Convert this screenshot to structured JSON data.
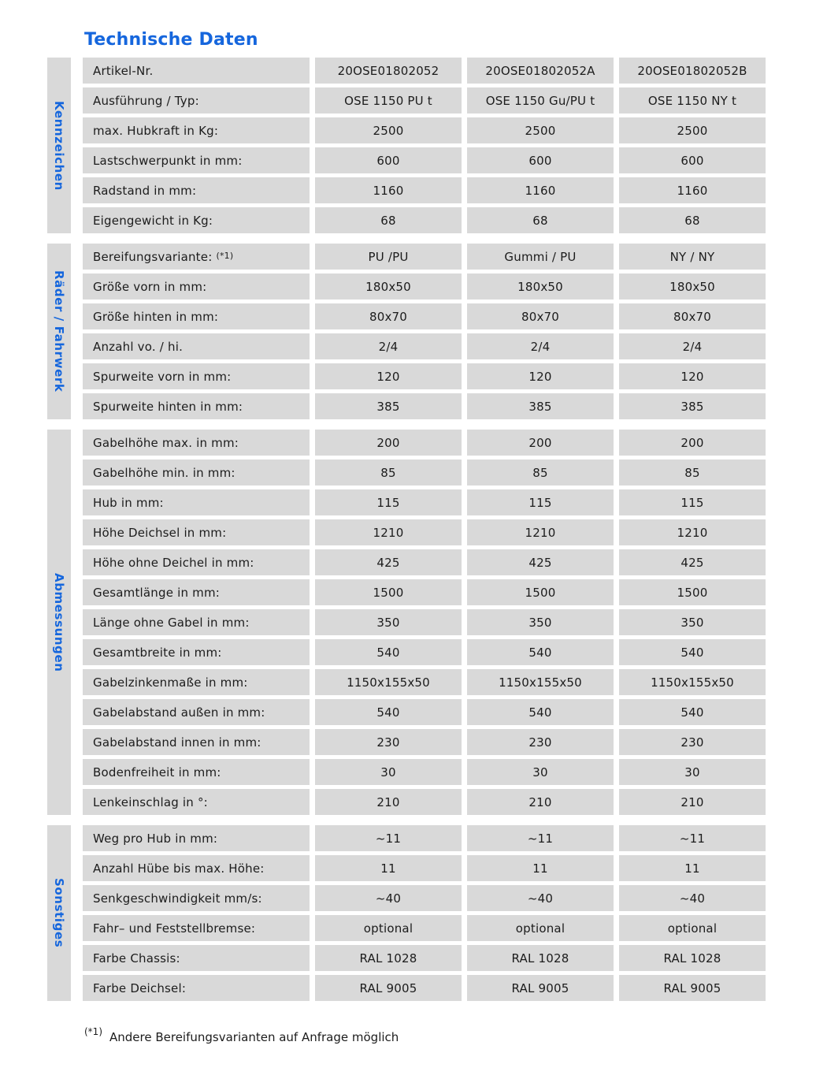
{
  "page": {
    "title": "Technische Daten",
    "footnote": {
      "marker": "(*1)",
      "text": "Andere Bereifungsvarianten auf Anfrage möglich"
    },
    "colors": {
      "accent_blue": "#1566dd",
      "cell_gray": "#d9d9d9",
      "text": "#1c1c1c"
    }
  },
  "table": {
    "sections": [
      {
        "name": "Kennzeichen",
        "rows": [
          {
            "label": "Artikel-Nr.",
            "values": [
              "20OSE01802052",
              "20OSE01802052A",
              "20OSE01802052B"
            ]
          },
          {
            "label": "Ausführung / Typ:",
            "values": [
              "OSE 1150 PU t",
              "OSE 1150 Gu/PU t",
              "OSE 1150 NY t"
            ]
          },
          {
            "label": "max. Hubkraft in Kg:",
            "values": [
              "2500",
              "2500",
              "2500"
            ]
          },
          {
            "label": "Lastschwerpunkt in mm:",
            "values": [
              "600",
              "600",
              "600"
            ]
          },
          {
            "label": "Radstand in mm:",
            "values": [
              "1160",
              "1160",
              "1160"
            ]
          },
          {
            "label": "Eigengewicht in Kg:",
            "values": [
              "68",
              "68",
              "68"
            ]
          }
        ]
      },
      {
        "name": "Räder / Fahrwerk",
        "rows": [
          {
            "label": "Bereifungsvariante:",
            "label_sup": "(*1)",
            "values": [
              "PU /PU",
              "Gummi / PU",
              "NY / NY"
            ]
          },
          {
            "label": "Größe vorn in mm:",
            "values": [
              "180x50",
              "180x50",
              "180x50"
            ]
          },
          {
            "label": "Größe hinten in mm:",
            "values": [
              "80x70",
              "80x70",
              "80x70"
            ]
          },
          {
            "label": "Anzahl vo. / hi.",
            "values": [
              "2/4",
              "2/4",
              "2/4"
            ]
          },
          {
            "label": "Spurweite vorn in mm:",
            "values": [
              "120",
              "120",
              "120"
            ]
          },
          {
            "label": "Spurweite hinten in mm:",
            "values": [
              "385",
              "385",
              "385"
            ]
          }
        ]
      },
      {
        "name": "Abmessungen",
        "rows": [
          {
            "label": "Gabelhöhe max. in mm:",
            "values": [
              "200",
              "200",
              "200"
            ]
          },
          {
            "label": "Gabelhöhe min. in mm:",
            "values": [
              "85",
              "85",
              "85"
            ]
          },
          {
            "label": "Hub in mm:",
            "values": [
              "115",
              "115",
              "115"
            ]
          },
          {
            "label": "Höhe Deichsel in mm:",
            "values": [
              "1210",
              "1210",
              "1210"
            ]
          },
          {
            "label": "Höhe ohne Deichel in mm:",
            "values": [
              "425",
              "425",
              "425"
            ]
          },
          {
            "label": "Gesamtlänge in mm:",
            "values": [
              "1500",
              "1500",
              "1500"
            ]
          },
          {
            "label": "Länge ohne Gabel in mm:",
            "values": [
              "350",
              "350",
              "350"
            ]
          },
          {
            "label": "Gesamtbreite in mm:",
            "values": [
              "540",
              "540",
              "540"
            ]
          },
          {
            "label": "Gabelzinkenmaße in mm:",
            "values": [
              "1150x155x50",
              "1150x155x50",
              "1150x155x50"
            ]
          },
          {
            "label": "Gabelabstand außen in mm:",
            "values": [
              "540",
              "540",
              "540"
            ]
          },
          {
            "label": "Gabelabstand innen in mm:",
            "values": [
              "230",
              "230",
              "230"
            ]
          },
          {
            "label": "Bodenfreiheit in mm:",
            "values": [
              "30",
              "30",
              "30"
            ]
          },
          {
            "label": "Lenkeinschlag in °:",
            "values": [
              "210",
              "210",
              "210"
            ]
          }
        ]
      },
      {
        "name": "Sonstiges",
        "rows": [
          {
            "label": "Weg pro Hub in mm:",
            "values": [
              "~11",
              "~11",
              "~11"
            ]
          },
          {
            "label": "Anzahl Hübe bis max. Höhe:",
            "values": [
              "11",
              "11",
              "11"
            ]
          },
          {
            "label": "Senkgeschwindigkeit mm/s:",
            "values": [
              "~40",
              "~40",
              "~40"
            ]
          },
          {
            "label": "Fahr– und Feststellbremse:",
            "values": [
              "optional",
              "optional",
              "optional"
            ]
          },
          {
            "label": "Farbe Chassis:",
            "values": [
              "RAL 1028",
              "RAL 1028",
              "RAL 1028"
            ]
          },
          {
            "label": "Farbe Deichsel:",
            "values": [
              "RAL 9005",
              "RAL 9005",
              "RAL 9005"
            ]
          }
        ]
      }
    ]
  }
}
